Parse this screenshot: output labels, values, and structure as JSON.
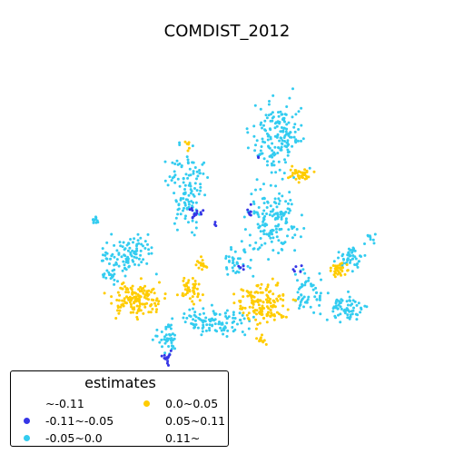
{
  "title": "COMDIST_2012",
  "legend": {
    "title": "estimates",
    "entries": [
      {
        "label": "~-0.11",
        "color": "#ffffff"
      },
      {
        "label": "-0.11~-0.05",
        "color": "#3535e6"
      },
      {
        "label": "-0.05~0.0",
        "color": "#33ccf0"
      },
      {
        "label": "0.0~0.05",
        "color": "#ffcc00"
      },
      {
        "label": "0.05~0.11",
        "color": "#ffffff"
      },
      {
        "label": "0.11~",
        "color": "#ffffff"
      }
    ]
  },
  "chart_data": {
    "type": "scatter",
    "title": "COMDIST_2012",
    "legend_title": "estimates",
    "legend_placement": "bottom-left",
    "axes_visible": false,
    "series": [
      {
        "name": "~-0.11",
        "color": "#ffffff",
        "count": 0
      },
      {
        "name": "-0.11~-0.05",
        "color": "#3535e6"
      },
      {
        "name": "-0.05~0.0",
        "color": "#33ccf0"
      },
      {
        "name": "0.0~0.05",
        "color": "#ffcc00"
      },
      {
        "name": "0.05~0.11",
        "color": "#ffffff",
        "count": 0
      },
      {
        "name": "0.11~",
        "color": "#ffffff",
        "count": 0
      }
    ]
  }
}
